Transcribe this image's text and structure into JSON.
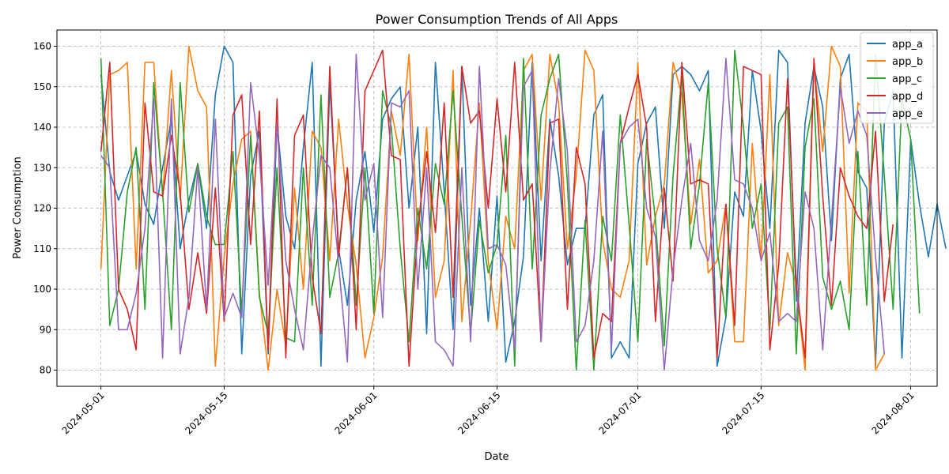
{
  "chart_data": {
    "type": "line",
    "title": "Power Consumption Trends of All Apps",
    "xlabel": "Date",
    "ylabel": "Power Consumption",
    "x_start": "2024-05-01",
    "x_end": "2024-07-30",
    "xlim": [
      "2024-04-26",
      "2024-08-04"
    ],
    "ylim": [
      76,
      164
    ],
    "x_ticks": [
      "2024-05-01",
      "2024-05-15",
      "2024-06-01",
      "2024-06-15",
      "2024-07-01",
      "2024-07-15",
      "2024-08-01"
    ],
    "y_ticks": [
      80,
      90,
      100,
      110,
      120,
      130,
      140,
      150,
      160
    ],
    "grid": true,
    "legend_position": "top-right",
    "series": [
      {
        "name": "app_a",
        "color": "#1f77b4",
        "values": [
          153,
          129,
          122,
          128,
          134,
          121,
          116,
          130,
          142,
          110,
          122,
          131,
          115,
          148,
          160,
          156,
          84,
          128,
          139,
          84,
          141,
          118,
          110,
          135,
          156,
          81,
          151,
          110,
          96,
          122,
          134,
          114,
          142,
          147,
          150,
          120,
          140,
          89,
          156,
          124,
          90,
          155,
          96,
          120,
          92,
          123,
          82,
          92,
          108,
          156,
          107,
          142,
          128,
          106,
          115,
          115,
          143,
          148,
          83,
          87,
          83,
          131,
          141,
          145,
          115,
          153,
          155,
          153,
          149,
          154,
          81,
          93,
          124,
          118,
          154,
          139,
          115,
          159,
          156,
          97,
          141,
          155,
          145,
          112,
          152,
          158,
          129,
          125,
          81,
          141,
          149,
          83,
          137,
          121,
          108,
          121,
          110
        ]
      },
      {
        "name": "app_b",
        "color": "#ff7f0e",
        "values": [
          105,
          153,
          154,
          156,
          105,
          156,
          156,
          123,
          154,
          122,
          160,
          149,
          145,
          81,
          108,
          126,
          137,
          139,
          99,
          80,
          100,
          86,
          125,
          100,
          139,
          135,
          107,
          142,
          121,
          106,
          83,
          93,
          108,
          144,
          133,
          158,
          112,
          140,
          98,
          107,
          154,
          92,
          117,
          146,
          107,
          90,
          118,
          110,
          154,
          158,
          122,
          158,
          146,
          110,
          128,
          159,
          154,
          112,
          100,
          98,
          107,
          156,
          106,
          118,
          126,
          156,
          148,
          116,
          132,
          104,
          107,
          121,
          87,
          87,
          136,
          107,
          153,
          91,
          109,
          101,
          80,
          156,
          134,
          160,
          155,
          99,
          146,
          144,
          80,
          84
        ]
      },
      {
        "name": "app_c",
        "color": "#2ca02c",
        "values": [
          157,
          91,
          100,
          124,
          135,
          95,
          151,
          124,
          90,
          151,
          119,
          131,
          118,
          111,
          111,
          134,
          94,
          138,
          98,
          89,
          130,
          88,
          87,
          130,
          96,
          148,
          98,
          109,
          130,
          96,
          130,
          94,
          149,
          140,
          110,
          87,
          120,
          105,
          131,
          121,
          149,
          118,
          89,
          117,
          104,
          111,
          138,
          81,
          157,
          105,
          143,
          152,
          158,
          126,
          80,
          117,
          80,
          118,
          107,
          143,
          116,
          87,
          137,
          117,
          86,
          128,
          153,
          110,
          126,
          151,
          110,
          93,
          159,
          140,
          115,
          126,
          90,
          141,
          145,
          84,
          135,
          147,
          103,
          95,
          102,
          90,
          134,
          96,
          158,
          128,
          95,
          147,
          137,
          94
        ]
      },
      {
        "name": "app_d",
        "color": "#d62728",
        "values": [
          134,
          156,
          100,
          95,
          85,
          146,
          124,
          123,
          138,
          124,
          95,
          109,
          94,
          125,
          92,
          143,
          148,
          111,
          144,
          85,
          147,
          83,
          138,
          143,
          103,
          89,
          155,
          108,
          130,
          90,
          149,
          154,
          159,
          133,
          132,
          81,
          115,
          134,
          114,
          146,
          98,
          155,
          141,
          144,
          120,
          147,
          124,
          156,
          122,
          126,
          87,
          141,
          142,
          95,
          135,
          126,
          83,
          94,
          92,
          136,
          145,
          153,
          140,
          92,
          125,
          102,
          156,
          126,
          127,
          126,
          83,
          121,
          91,
          155,
          154,
          153,
          85,
          106,
          152,
          101,
          83,
          157,
          123,
          96,
          130,
          123,
          118,
          115,
          139,
          97,
          116
        ]
      },
      {
        "name": "app_e",
        "color": "#9467bd",
        "values": [
          133,
          130,
          90,
          90,
          99,
          115,
          147,
          83,
          147,
          84,
          98,
          130,
          95,
          142,
          93,
          99,
          93,
          151,
          133,
          101,
          141,
          107,
          95,
          85,
          112,
          133,
          130,
          106,
          82,
          158,
          122,
          131,
          93,
          146,
          145,
          149,
          100,
          130,
          87,
          85,
          81,
          130,
          87,
          155,
          110,
          111,
          106,
          85,
          150,
          154,
          87,
          129,
          152,
          134,
          87,
          91,
          107,
          139,
          85,
          136,
          140,
          142,
          120,
          113,
          80,
          105,
          122,
          136,
          112,
          107,
          122,
          157,
          127,
          126,
          120,
          107,
          114,
          92,
          94,
          92,
          124,
          115,
          85,
          117,
          150,
          136,
          144,
          138,
          108,
          84
        ]
      }
    ]
  }
}
